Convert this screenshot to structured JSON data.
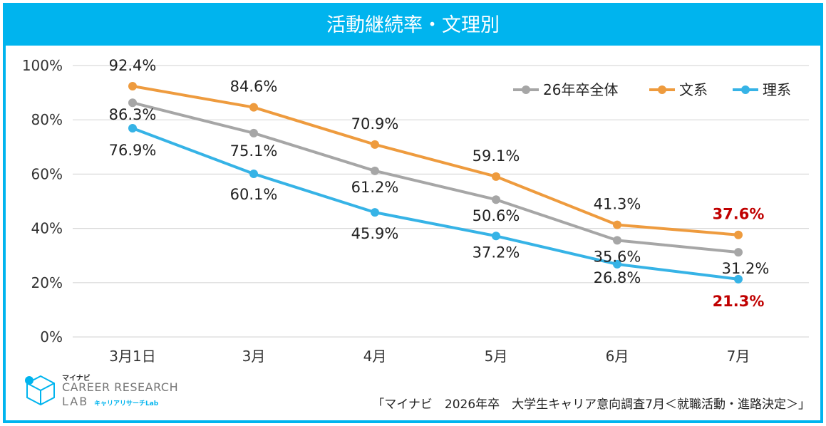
{
  "title": "活動継続率・文理別",
  "source_note": "「マイナビ　2026年卒　大学生キャリア意向調査7月＜就職活動・進路決定＞」",
  "logo": {
    "kana": "マイナビ",
    "main": "CAREER RESEARCH",
    "lab": "LAB",
    "sub": "キャリアリサーチLab"
  },
  "colors": {
    "accent": "#00b4ee",
    "highlight": "#c00000"
  },
  "chart_data": {
    "type": "line",
    "categories": [
      "3月1日",
      "3月",
      "4月",
      "5月",
      "6月",
      "7月"
    ],
    "ylim": [
      0,
      100
    ],
    "yticks": [
      "0%",
      "20%",
      "40%",
      "60%",
      "80%",
      "100%"
    ],
    "grid": true,
    "legend_position": "top-right",
    "series": [
      {
        "name": "26年卒全体",
        "color": "#a6a6a6",
        "values": [
          86.3,
          75.1,
          61.2,
          50.6,
          35.6,
          31.2
        ],
        "labels": [
          "86.3%",
          "75.1%",
          "61.2%",
          "50.6%",
          "35.6%",
          "31.2%"
        ]
      },
      {
        "name": "文系",
        "color": "#ee9b3e",
        "values": [
          92.4,
          84.6,
          70.9,
          59.1,
          41.3,
          37.6
        ],
        "labels": [
          "92.4%",
          "84.6%",
          "70.9%",
          "59.1%",
          "41.3%",
          "37.6%"
        ]
      },
      {
        "name": "理系",
        "color": "#36b3e6",
        "values": [
          76.9,
          60.1,
          45.9,
          37.2,
          26.8,
          21.3
        ],
        "labels": [
          "76.9%",
          "60.1%",
          "45.9%",
          "37.2%",
          "26.8%",
          "21.3%"
        ]
      }
    ]
  }
}
